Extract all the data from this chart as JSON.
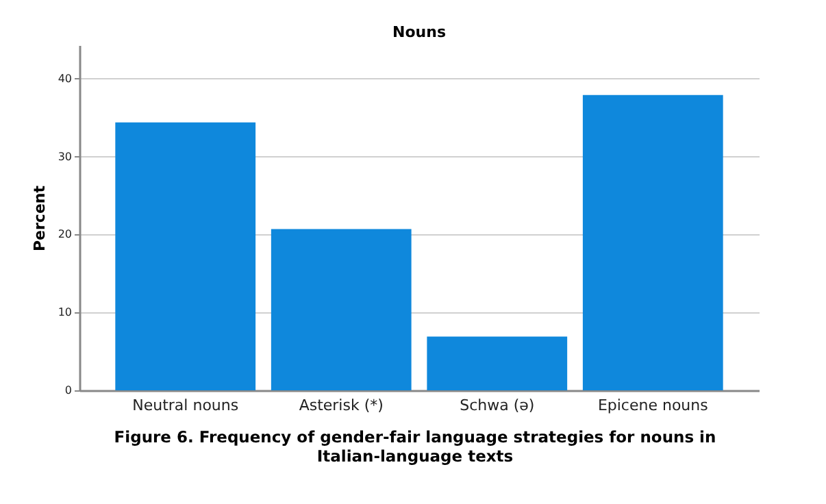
{
  "chart_data": {
    "type": "bar",
    "title": "Nouns",
    "ylabel": "Percent",
    "categories": [
      "Neutral nouns",
      "Asterisk (*)",
      "Schwa (ə)",
      "Epicene nouns"
    ],
    "values": [
      34.4,
      20.7,
      6.9,
      37.9
    ],
    "color": "#0f88dc",
    "ylim": [
      0,
      44.3
    ],
    "yticks": [
      0,
      10,
      20,
      30,
      40
    ],
    "grid": "y",
    "annotations": [
      "Figure 6. Frequency of gender-fair language strategies for nouns in Italian-language texts"
    ]
  }
}
